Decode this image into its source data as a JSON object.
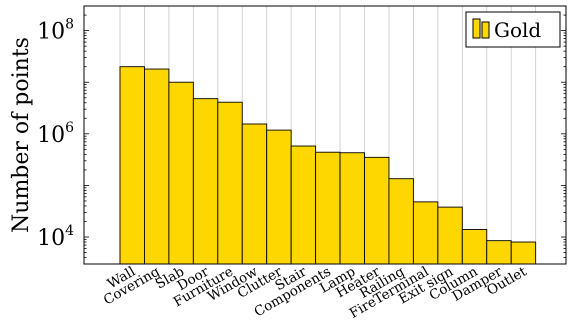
{
  "chart_data": {
    "type": "bar",
    "ylabel": "Number of points",
    "yscale": "log",
    "ylim": [
      3000,
      300000000
    ],
    "yticks": [
      {
        "value": 10000,
        "base": "10",
        "exp": "4"
      },
      {
        "value": 1000000,
        "base": "10",
        "exp": "6"
      },
      {
        "value": 100000000,
        "base": "10",
        "exp": "8"
      }
    ],
    "grid": "vertical",
    "legend_position": "top-right",
    "categories": [
      "Wall",
      "Covering",
      "Slab",
      "Door",
      "Furniture",
      "Window",
      "Clutter",
      "Stair",
      "Components",
      "Lamp",
      "Heater",
      "Railing",
      "FireTerminal",
      "Exit sign",
      "Column",
      "Damper",
      "Outlet"
    ],
    "series": [
      {
        "name": "Gold",
        "color": "#FFD700",
        "values": [
          20000000,
          18000000,
          10000000,
          4800000,
          4100000,
          1550000,
          1180000,
          580000,
          440000,
          430000,
          350000,
          135000,
          48000,
          38000,
          14000,
          8500,
          8000
        ]
      }
    ]
  }
}
